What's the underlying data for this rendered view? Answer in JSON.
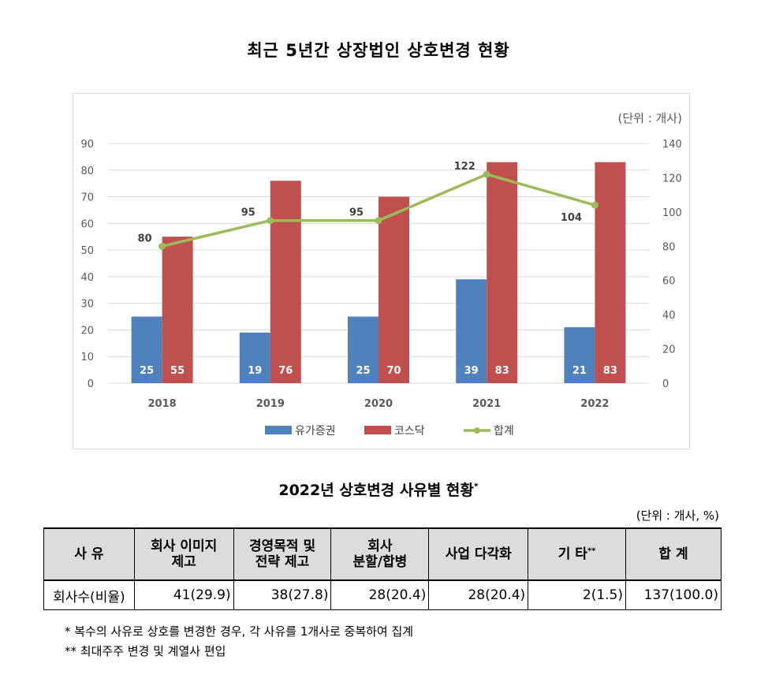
{
  "title": "최근 5년간 상장법인 상호변경 현황",
  "chart_data": {
    "type": "bar",
    "unit": "(단위 : 개사)",
    "categories": [
      "2018",
      "2019",
      "2020",
      "2021",
      "2022"
    ],
    "series": [
      {
        "name": "유가증권",
        "type": "bar",
        "axis": "left",
        "color": "#4f81bd",
        "values": [
          25,
          19,
          25,
          39,
          21
        ]
      },
      {
        "name": "코스닥",
        "type": "bar",
        "axis": "left",
        "color": "#c0504d",
        "values": [
          55,
          76,
          70,
          83,
          83
        ]
      },
      {
        "name": "합계",
        "type": "line",
        "axis": "right",
        "color": "#9bbb59",
        "values": [
          80,
          95,
          95,
          122,
          104
        ]
      }
    ],
    "ylim_left": [
      0,
      90
    ],
    "yticks_left": [
      0,
      10,
      20,
      30,
      40,
      50,
      60,
      70,
      80,
      90
    ],
    "ylim_right": [
      0,
      140
    ],
    "yticks_right": [
      0,
      20,
      40,
      60,
      80,
      100,
      120,
      140
    ],
    "grid": true,
    "legend_position": "bottom"
  },
  "table": {
    "title": "2022년 상호변경 사유별 현황",
    "title_mark": "*",
    "unit": "(단위 : 개사, %)",
    "headers": [
      {
        "text": "사  유"
      },
      {
        "line1": "회사 이미지",
        "line2": "제고"
      },
      {
        "line1": "경영목적 및",
        "line2": "전략 제고"
      },
      {
        "line1": "회사",
        "line2": "분할/합병"
      },
      {
        "text": "사업 다각화"
      },
      {
        "text": "기  타",
        "mark": "**"
      },
      {
        "text": "합   계"
      }
    ],
    "row": [
      "회사수(비율)",
      "41(29.9)",
      "38(27.8)",
      "28(20.4)",
      "28(20.4)",
      "2(1.5)",
      "137(100.0)"
    ]
  },
  "notes": [
    "*  복수의 사유로 상호를 변경한 경우, 각 사유를 1개사로 중복하여 집계",
    "**  최대주주 변경 및 계열사 편입"
  ]
}
